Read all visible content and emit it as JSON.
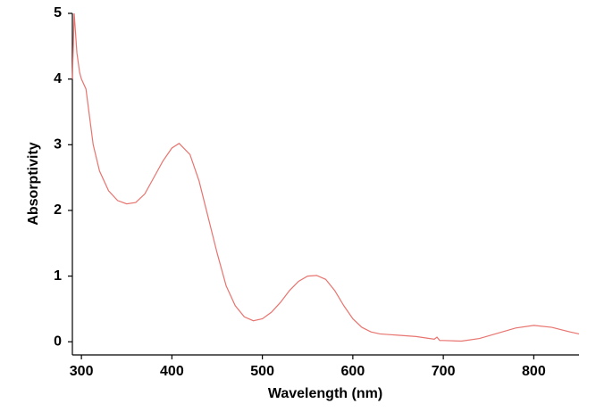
{
  "chart_data": {
    "type": "line",
    "x_label": "Wavelength (nm)",
    "y_label": "Absorptivity",
    "x": [
      290,
      292,
      295,
      298,
      300,
      305,
      313,
      320,
      330,
      340,
      350,
      360,
      370,
      380,
      390,
      400,
      408,
      420,
      430,
      440,
      450,
      460,
      470,
      480,
      490,
      500,
      510,
      520,
      530,
      540,
      550,
      560,
      570,
      580,
      590,
      600,
      610,
      620,
      630,
      640,
      650,
      660,
      670,
      680,
      690,
      693,
      696,
      700,
      720,
      740,
      760,
      780,
      800,
      820,
      840,
      850
    ],
    "series": [
      {
        "name": "Absorptivity",
        "color": "#e8746f",
        "values": [
          4.0,
          5.0,
          4.4,
          4.1,
          4.0,
          3.85,
          3.0,
          2.6,
          2.3,
          2.15,
          2.1,
          2.12,
          2.25,
          2.5,
          2.75,
          2.95,
          3.02,
          2.85,
          2.45,
          1.9,
          1.35,
          0.85,
          0.55,
          0.38,
          0.32,
          0.35,
          0.45,
          0.6,
          0.78,
          0.92,
          1.0,
          1.01,
          0.95,
          0.78,
          0.55,
          0.35,
          0.22,
          0.15,
          0.12,
          0.11,
          0.1,
          0.09,
          0.08,
          0.06,
          0.04,
          0.07,
          0.02,
          0.02,
          0.01,
          0.05,
          0.13,
          0.21,
          0.25,
          0.22,
          0.15,
          0.12
        ]
      }
    ],
    "xlim": [
      290,
      850
    ],
    "xticks": [
      300,
      400,
      500,
      600,
      700,
      800
    ],
    "ylim": [
      -0.2,
      5
    ],
    "yticks": [
      0,
      1,
      2,
      3,
      4,
      5
    ],
    "grid": false
  }
}
